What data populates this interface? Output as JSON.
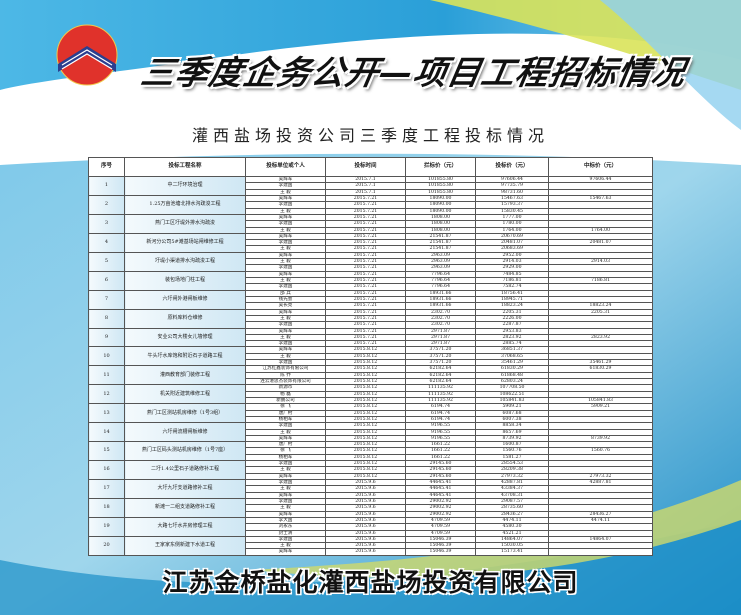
{
  "header": {
    "title": "三季度企务公开—项目工程招标情况",
    "subtitle": "灌西盐场投资公司三季度工程投标情况"
  },
  "table": {
    "columns": [
      "序号",
      "投标工程名称",
      "投标单位或个人",
      "投标时间",
      "拦标价（元）",
      "投标价（元）",
      "中标价（元）"
    ],
    "projects": [
      {
        "no": "1",
        "name": "中二圩环境治理",
        "date": "2015.7.1",
        "ceiling": "101855.80",
        "bids": [
          [
            "吴辉军",
            "97606.44",
            "97606.44"
          ],
          [
            "李建国",
            "97735.79",
            ""
          ],
          [
            "王 毅",
            "98731.60",
            ""
          ]
        ]
      },
      {
        "no": "2",
        "name": "1.25万亩池塘北排水沟疏浚工程",
        "date": "2015.7.21",
        "ceiling": "18090.00",
        "bids": [
          [
            "吴辉军",
            "15467.63",
            "15467.63"
          ],
          [
            "李建国",
            "15793.37",
            ""
          ],
          [
            "王 毅",
            "15830.45",
            ""
          ]
        ]
      },
      {
        "no": "3",
        "name": "燕门工区圩堤外排水沟疏浚",
        "date": "2015.7.21",
        "ceiling": "1808.00",
        "bids": [
          [
            "吴辉军",
            "1777.00",
            ""
          ],
          [
            "李建国",
            "1780.00",
            ""
          ],
          [
            "王 毅",
            "1764.00",
            "1764.00"
          ]
        ]
      },
      {
        "no": "4",
        "name": "新河分公司5#滩基场站闸维修工程",
        "date": "2015.7.21",
        "ceiling": "21541.87",
        "bids": [
          [
            "吴辉军",
            "20670.69",
            ""
          ],
          [
            "李建国",
            "20481.07",
            "20481.07"
          ],
          [
            "王 毅",
            "20683.69",
            ""
          ]
        ]
      },
      {
        "no": "5",
        "name": "圩堤小渠道排水沟疏浚工程",
        "date": "2015.7.21",
        "ceiling": "2963.09",
        "bids": [
          [
            "吴辉军",
            "2952.00",
            ""
          ],
          [
            "王 毅",
            "2914.03",
            "2914.03"
          ],
          [
            "李建国",
            "2929.00",
            ""
          ]
        ]
      },
      {
        "no": "6",
        "name": "装包场地门柱工程",
        "date": "2015.7.21",
        "ceiling": "7796.64",
        "bids": [
          [
            "吴辉军",
            "7484.85",
            ""
          ],
          [
            "王 毅",
            "7186.81",
            "7186.81"
          ],
          [
            "李建国",
            "7582.74",
            ""
          ]
        ]
      },
      {
        "no": "7",
        "name": "六圩闸外港闸板维修",
        "date": "2015.7.21",
        "ceiling": "18931.66",
        "bids": [
          [
            "邵 兵",
            "18756.41",
            ""
          ],
          [
            "钱先会",
            "18945.71",
            ""
          ],
          [
            "吴长亮",
            "18823.24",
            "18823.24"
          ]
        ]
      },
      {
        "no": "8",
        "name": "原料库料仓维修",
        "date": "2015.7.21",
        "ceiling": "2302.70",
        "bids": [
          [
            "吴辉军",
            "2205.31",
            "2205.31"
          ],
          [
            "王 毅",
            "2226.00",
            ""
          ],
          [
            "李建国",
            "2287.87",
            ""
          ]
        ]
      },
      {
        "no": "9",
        "name": "安业公司大楼女儿墙修理",
        "date": "2015.7.21",
        "ceiling": "2971.87",
        "bids": [
          [
            "吴辉军",
            "2953.83",
            ""
          ],
          [
            "王 毅",
            "2823.92",
            "2823.92"
          ],
          [
            "李建国",
            "2885.74",
            ""
          ]
        ]
      },
      {
        "no": "10",
        "name": "牛头圩水库饱和附近石子道路工程",
        "date": "2015.8.12",
        "ceiling": "37571.20",
        "bids": [
          [
            "吴辉军",
            "36851.37",
            ""
          ],
          [
            "王 毅",
            "37068.65",
            ""
          ],
          [
            "李建国",
            "35461.29",
            "35461.29"
          ]
        ]
      },
      {
        "no": "11",
        "name": "灌西教育部门装修工程",
        "date": "2015.8.12",
        "ceiling": "62182.64",
        "bids": [
          [
            "江苏红鑫装饰有限公司",
            "61830.29",
            "61830.29"
          ],
          [
            "陈 乔",
            "61868.48",
            ""
          ],
          [
            "连云港思杰装饰有限公司",
            "62803.24",
            ""
          ]
        ]
      },
      {
        "no": "12",
        "name": "机关附近建筑维修工程",
        "date": "2015.8.12",
        "ceiling": "111135.92",
        "bids": [
          [
            "新源市",
            "107708.50",
            ""
          ],
          [
            "杨 磊",
            "108622.51",
            ""
          ],
          [
            "新鹏公司",
            "105841.83",
            "105841.83"
          ]
        ]
      },
      {
        "no": "13",
        "name": "燕门工区测站机房维修（1号3组）",
        "date": "2015.8.12",
        "ceiling": "6194.74",
        "bids": [
          [
            "徐 飞",
            "5909.21",
            "5909.21"
          ],
          [
            "唐广村",
            "6087.68",
            ""
          ],
          [
            "杨相军",
            "6007.38",
            ""
          ]
        ]
      },
      {
        "no": "14",
        "name": "六圩闸流槽闸板维修",
        "date": "2015.8.12",
        "ceiling": "9196.55",
        "bids": [
          [
            "李建国",
            "8858.34",
            ""
          ],
          [
            "王 毅",
            "8657.69",
            ""
          ],
          [
            "吴辉军",
            "8739.92",
            "8739.92"
          ]
        ]
      },
      {
        "no": "15",
        "name": "燕门工区码头测站机房维修（1号7座）",
        "date": "2015.8.12",
        "ceiling": "1661.22",
        "bids": [
          [
            "唐广村",
            "1600.87",
            ""
          ],
          [
            "徐 飞",
            "1560.76",
            "1560.76"
          ],
          [
            "杨相军",
            "1581.27",
            ""
          ]
        ]
      },
      {
        "no": "16",
        "name": "二圩1.4公里石子道路修补工程",
        "date": "2015.8.12",
        "ceiling": "29145.60",
        "bids": [
          [
            "李建国",
            "28554.53",
            ""
          ],
          [
            "王 毅",
            "28209.38",
            ""
          ],
          [
            "吴辉军",
            "27973.32",
            "27973.32"
          ]
        ]
      },
      {
        "no": "17",
        "name": "大圩九圩支道路修补工程",
        "date": "2015.9.6",
        "ceiling": "44645.41",
        "bids": [
          [
            "李建国",
            "42887.81",
            "42887.81"
          ],
          [
            "王 毅",
            "43384.37",
            ""
          ],
          [
            "吴辉军",
            "43708.31",
            ""
          ]
        ]
      },
      {
        "no": "18",
        "name": "新滩一二组支道路修补工程",
        "date": "2015.9.6",
        "ceiling": "29002.92",
        "bids": [
          [
            "李建国",
            "29087.57",
            ""
          ],
          [
            "王 毅",
            "28735.60",
            ""
          ],
          [
            "吴辉军",
            "28436.27",
            "28436.27"
          ]
        ]
      },
      {
        "no": "19",
        "name": "大路七圩水井房修理工程",
        "date": "2015.9.6",
        "ceiling": "4709.59",
        "bids": [
          [
            "李大国",
            "4474.11",
            "4474.11"
          ],
          [
            "刘永东",
            "4580.30",
            ""
          ],
          [
            "封士清",
            "4521.21",
            ""
          ]
        ]
      },
      {
        "no": "20",
        "name": "王家家东侧新建下水道工程",
        "date": "2015.9.6",
        "ceiling": "15046.39",
        "bids": [
          [
            "李建国",
            "14864.07",
            "14864.07"
          ],
          [
            "王 毅",
            "15030.05",
            ""
          ],
          [
            "吴辉军",
            "15173.41",
            ""
          ]
        ]
      }
    ]
  },
  "footer": {
    "company": "江苏金桥盐化灌西盐场投资有限公司"
  },
  "colors": {
    "blue": "#2a9fd8",
    "lightblue": "#8fd0ef",
    "yellow": "#d9e35a",
    "logo_red": "#e0322b",
    "logo_navy": "#2b3f8f"
  }
}
